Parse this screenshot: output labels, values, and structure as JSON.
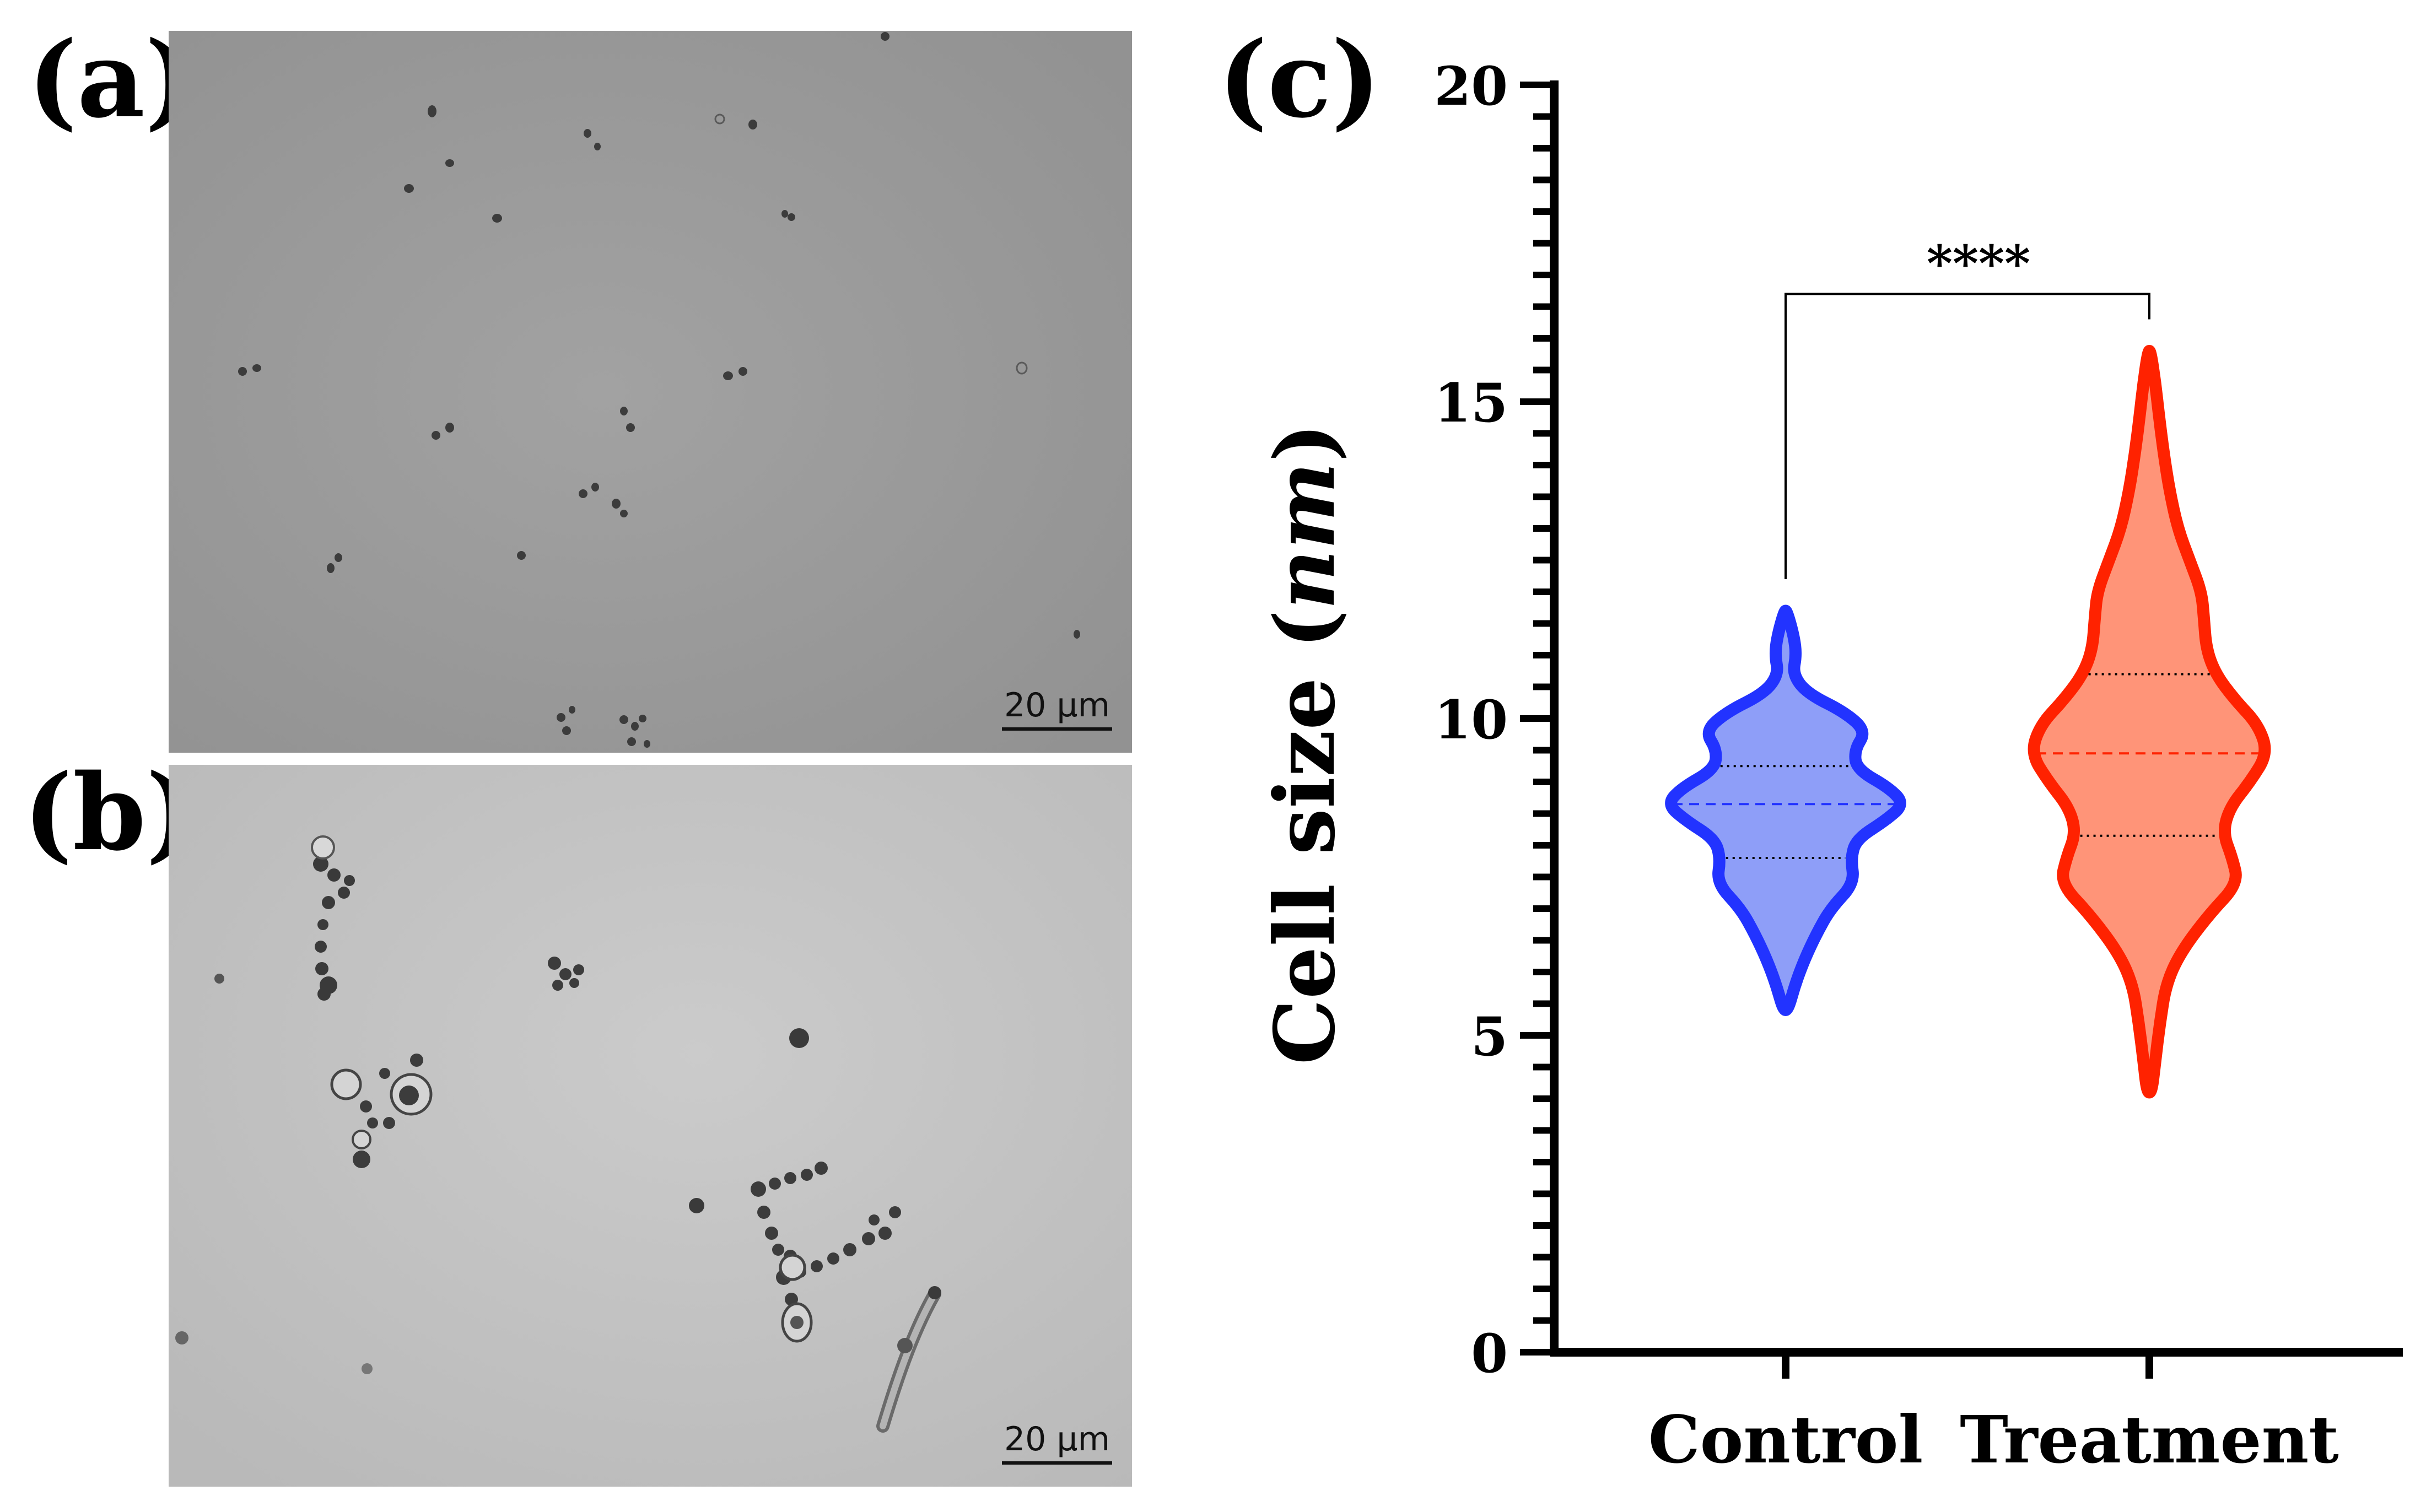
{
  "panels": {
    "a": {
      "label": "(a)",
      "scale_bar": "20 µm"
    },
    "b": {
      "label": "(b)",
      "scale_bar": "20 µm"
    },
    "c": {
      "label": "(c)"
    }
  },
  "colors": {
    "control_fill": "#8e9ef8",
    "control_stroke": "#2233ff",
    "treatment_fill": "#ff9478",
    "treatment_stroke": "#ff2200",
    "micro_a_bg": "#9a9a9a",
    "micro_b_bg": "#c4c4c4"
  },
  "chart_data": {
    "type": "violin",
    "ylabel": "Cell size (nm)",
    "ylabel_plain": "Cell size (",
    "ylabel_italic": "nm",
    "ylabel_close": ")",
    "ylim": [
      0,
      20
    ],
    "yticks": [
      0,
      5,
      10,
      15,
      20
    ],
    "minor_tick_step": 0.5,
    "categories": [
      "Control",
      "Treatment"
    ],
    "series": [
      {
        "category": "Control",
        "min": 5.4,
        "max": 11.7,
        "q1": 7.8,
        "median": 8.65,
        "q3": 9.25,
        "density": [
          [
            5.4,
            0.02
          ],
          [
            5.8,
            0.08
          ],
          [
            6.2,
            0.16
          ],
          [
            6.6,
            0.26
          ],
          [
            7.0,
            0.38
          ],
          [
            7.4,
            0.58
          ],
          [
            7.8,
            0.55
          ],
          [
            8.1,
            0.6
          ],
          [
            8.4,
            0.85
          ],
          [
            8.65,
            1.0
          ],
          [
            8.9,
            0.88
          ],
          [
            9.2,
            0.6
          ],
          [
            9.5,
            0.58
          ],
          [
            9.8,
            0.68
          ],
          [
            10.1,
            0.5
          ],
          [
            10.4,
            0.18
          ],
          [
            10.7,
            0.06
          ],
          [
            11.0,
            0.09
          ],
          [
            11.3,
            0.07
          ],
          [
            11.7,
            0.01
          ]
        ]
      },
      {
        "category": "Treatment",
        "min": 4.1,
        "max": 15.8,
        "q1": 8.15,
        "median": 9.45,
        "q3": 10.7,
        "density": [
          [
            4.1,
            0.02
          ],
          [
            4.6,
            0.05
          ],
          [
            5.2,
            0.09
          ],
          [
            5.8,
            0.14
          ],
          [
            6.3,
            0.26
          ],
          [
            6.9,
            0.5
          ],
          [
            7.4,
            0.75
          ],
          [
            7.8,
            0.7
          ],
          [
            8.2,
            0.62
          ],
          [
            8.6,
            0.68
          ],
          [
            9.0,
            0.85
          ],
          [
            9.45,
            1.0
          ],
          [
            9.9,
            0.92
          ],
          [
            10.3,
            0.72
          ],
          [
            10.7,
            0.56
          ],
          [
            11.1,
            0.48
          ],
          [
            11.6,
            0.46
          ],
          [
            12.0,
            0.44
          ],
          [
            12.5,
            0.34
          ],
          [
            13.0,
            0.24
          ],
          [
            13.6,
            0.17
          ],
          [
            14.2,
            0.12
          ],
          [
            14.8,
            0.08
          ],
          [
            15.3,
            0.05
          ],
          [
            15.8,
            0.01
          ]
        ]
      }
    ],
    "comparison": {
      "from": "Control",
      "to": "Treatment",
      "label": "****"
    }
  }
}
